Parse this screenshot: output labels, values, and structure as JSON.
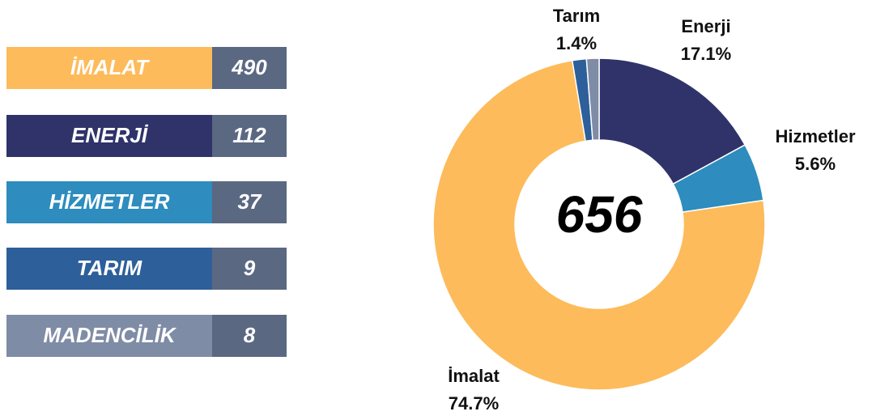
{
  "chart_data": {
    "type": "donut",
    "categories": [
      "İMALAT",
      "ENERJİ",
      "HİZMETLER",
      "TARIM",
      "MADENCİLİK"
    ],
    "values": [
      490,
      112,
      37,
      9,
      8
    ],
    "colors": [
      "#fdbb5b",
      "#2f3369",
      "#2e8cbe",
      "#2d5f9a",
      "#7f8ca6"
    ],
    "slice_labels": [
      "İmalat",
      "Enerji",
      "Hizmetler",
      "Tarım",
      null
    ],
    "percent_labels": [
      "74.7%",
      "17.1%",
      "5.6%",
      "1.4%",
      null
    ],
    "total": 656
  }
}
